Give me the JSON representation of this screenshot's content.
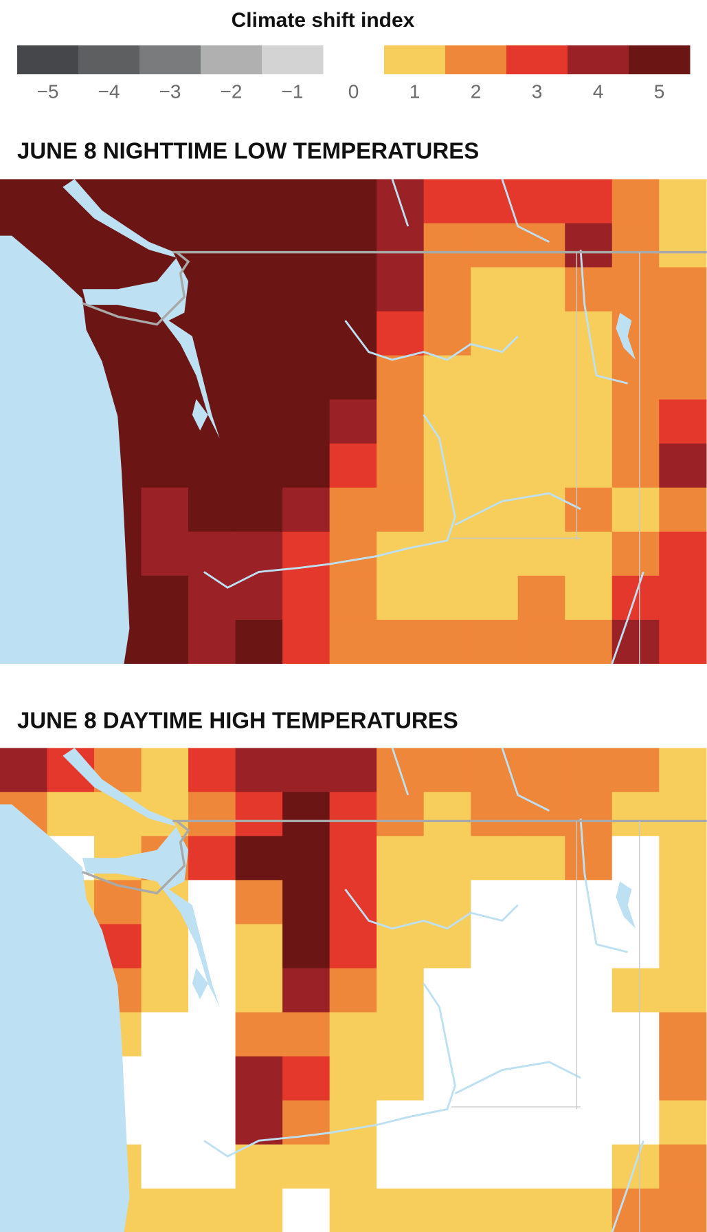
{
  "legend": {
    "title": "Climate shift index",
    "items": [
      {
        "value": -5,
        "label": "−5",
        "color": "#46474a"
      },
      {
        "value": -4,
        "label": "−4",
        "color": "#5e5f61"
      },
      {
        "value": -3,
        "label": "−3",
        "color": "#7a7b7d"
      },
      {
        "value": -2,
        "label": "−2",
        "color": "#b0b0b1"
      },
      {
        "value": -1,
        "label": "−1",
        "color": "#d3d3d4"
      },
      {
        "value": 0,
        "label": "0",
        "color": null
      },
      {
        "value": 1,
        "label": "1",
        "color": "#f7ce5b"
      },
      {
        "value": 2,
        "label": "2",
        "color": "#ef873b"
      },
      {
        "value": 3,
        "label": "3",
        "color": "#e3382b"
      },
      {
        "value": 4,
        "label": "4",
        "color": "#9a2226"
      },
      {
        "value": 5,
        "label": "5",
        "color": "#6b1515"
      }
    ]
  },
  "no_shift_color": "#ffffff",
  "maps": [
    {
      "title": "JUNE 8 NIGHTTIME LOW TEMPERATURES",
      "grid": [
        [
          5,
          5,
          5,
          5,
          5,
          5,
          5,
          5,
          4,
          3,
          3,
          3,
          3,
          2,
          1
        ],
        [
          5,
          5,
          5,
          5,
          5,
          5,
          5,
          5,
          4,
          2,
          2,
          2,
          4,
          2,
          1
        ],
        [
          5,
          5,
          5,
          5,
          5,
          5,
          5,
          5,
          4,
          2,
          1,
          1,
          2,
          2,
          2
        ],
        [
          5,
          5,
          5,
          5,
          5,
          5,
          5,
          5,
          3,
          2,
          1,
          1,
          1,
          2,
          2
        ],
        [
          5,
          5,
          5,
          5,
          5,
          5,
          5,
          5,
          2,
          1,
          1,
          1,
          1,
          2,
          2
        ],
        [
          5,
          5,
          5,
          5,
          5,
          5,
          5,
          4,
          2,
          1,
          1,
          1,
          1,
          2,
          3
        ],
        [
          5,
          5,
          5,
          5,
          5,
          5,
          5,
          3,
          2,
          1,
          1,
          1,
          1,
          2,
          4
        ],
        [
          5,
          5,
          5,
          4,
          5,
          5,
          4,
          2,
          2,
          1,
          1,
          1,
          2,
          1,
          2
        ],
        [
          5,
          5,
          5,
          4,
          4,
          4,
          3,
          2,
          1,
          1,
          1,
          1,
          1,
          2,
          3
        ],
        [
          5,
          5,
          5,
          5,
          4,
          4,
          3,
          2,
          1,
          1,
          1,
          2,
          1,
          3,
          3
        ],
        [
          5,
          5,
          5,
          5,
          4,
          5,
          3,
          2,
          2,
          2,
          2,
          2,
          2,
          4,
          3
        ]
      ]
    },
    {
      "title": "JUNE 8 DAYTIME HIGH TEMPERATURES",
      "grid": [
        [
          4,
          3,
          2,
          1,
          3,
          4,
          4,
          4,
          2,
          2,
          2,
          2,
          2,
          2,
          1
        ],
        [
          2,
          1,
          1,
          1,
          2,
          3,
          5,
          3,
          2,
          1,
          2,
          2,
          2,
          1,
          1
        ],
        [
          0,
          0,
          1,
          2,
          3,
          5,
          5,
          3,
          1,
          1,
          1,
          1,
          2,
          0,
          1
        ],
        [
          0,
          1,
          2,
          1,
          0,
          2,
          5,
          3,
          1,
          1,
          0,
          0,
          0,
          0,
          1
        ],
        [
          0,
          0,
          3,
          1,
          0,
          1,
          5,
          3,
          1,
          1,
          0,
          0,
          0,
          0,
          1
        ],
        [
          0,
          0,
          2,
          1,
          0,
          1,
          4,
          2,
          1,
          0,
          0,
          0,
          0,
          1,
          1
        ],
        [
          1,
          1,
          1,
          0,
          0,
          2,
          2,
          1,
          1,
          0,
          0,
          0,
          0,
          0,
          2
        ],
        [
          1,
          1,
          0,
          0,
          0,
          4,
          3,
          1,
          1,
          0,
          0,
          0,
          0,
          0,
          2
        ],
        [
          1,
          1,
          0,
          0,
          0,
          4,
          2,
          1,
          0,
          0,
          0,
          0,
          0,
          0,
          1
        ],
        [
          1,
          1,
          1,
          0,
          0,
          1,
          1,
          1,
          0,
          0,
          0,
          0,
          0,
          1,
          2
        ],
        [
          1,
          1,
          1,
          1,
          1,
          1,
          0,
          1,
          1,
          1,
          1,
          1,
          1,
          2,
          2
        ]
      ]
    }
  ]
}
